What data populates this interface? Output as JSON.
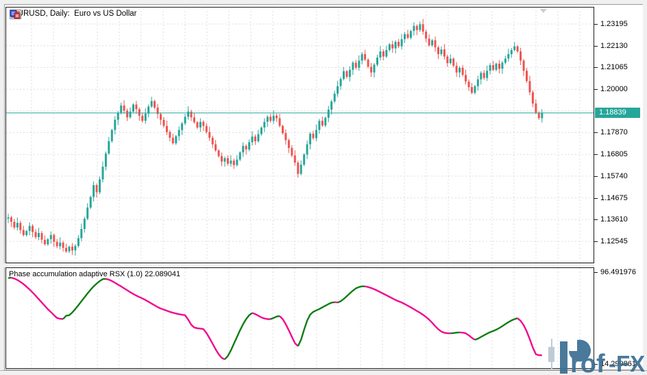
{
  "window": {
    "title": "EURUSD, Daily:  Euro vs US Dollar",
    "icons": [
      "market-list-icon",
      "chart-windows-icon"
    ]
  },
  "chart_data": {
    "type": "candlestick",
    "symbol": "EURUSD",
    "timeframe": "Daily",
    "title": "EURUSD, Daily:  Euro vs US Dollar",
    "price_axis_ticks": [
      "1.23195",
      "1.22130",
      "1.21065",
      "1.20000",
      "1.17870",
      "1.16805",
      "1.15740",
      "1.14675",
      "1.13610",
      "1.12545"
    ],
    "current_price": "1.18839",
    "colors": {
      "bull": "#26A69A",
      "bear": "#EF5350",
      "price_line": "#26A69A",
      "grid": "#dcdcdc"
    },
    "closes": [
      1.1372,
      1.135,
      1.1322,
      1.1345,
      1.131,
      1.1285,
      1.1305,
      1.133,
      1.13,
      1.1275,
      1.1295,
      1.1262,
      1.124,
      1.1265,
      1.1285,
      1.1252,
      1.123,
      1.1248,
      1.1222,
      1.1205,
      1.1228,
      1.121,
      1.1232,
      1.127,
      1.1315,
      1.1365,
      1.142,
      1.1472,
      1.153,
      1.1495,
      1.1558,
      1.162,
      1.1685,
      1.1745,
      1.18,
      1.185,
      1.1885,
      1.192,
      1.1895,
      1.1862,
      1.189,
      1.1925,
      1.1902,
      1.187,
      1.1845,
      1.188,
      1.1915,
      1.1942,
      1.191,
      1.1878,
      1.185,
      1.182,
      1.179,
      1.1762,
      1.1735,
      1.177,
      1.18,
      1.1832,
      1.1865,
      1.189,
      1.1862,
      1.1838,
      1.1812,
      1.184,
      1.182,
      1.179,
      1.1762,
      1.173,
      1.17,
      1.1672,
      1.1645,
      1.1662,
      1.1635,
      1.165,
      1.1628,
      1.1655,
      1.169,
      1.1722,
      1.1705,
      1.174,
      1.1768,
      1.1745,
      1.178,
      1.1812,
      1.184,
      1.1865,
      1.1845,
      1.187,
      1.1858,
      1.182,
      1.1785,
      1.175,
      1.1712,
      1.1675,
      1.164,
      1.1585,
      1.163,
      1.168,
      1.173,
      1.1782,
      1.176,
      1.18,
      1.1845,
      1.1822,
      1.186,
      1.19,
      1.194,
      1.1978,
      1.2015,
      1.205,
      1.2088,
      1.206,
      1.2095,
      1.213,
      1.2105,
      1.214,
      1.2172,
      1.2145,
      1.211,
      1.2082,
      1.212,
      1.2155,
      1.2185,
      1.216,
      1.2192,
      1.222,
      1.22,
      1.2232,
      1.221,
      1.2245,
      1.227,
      1.2252,
      1.2285,
      1.231,
      1.229,
      1.2318,
      1.2282,
      1.2248,
      1.2215,
      1.224,
      1.2205,
      1.2172,
      1.2195,
      1.216,
      1.2128,
      1.215,
      1.2115,
      1.2082,
      1.2105,
      1.207,
      1.2038,
      1.201,
      1.1982,
      1.2015,
      1.2048,
      1.208,
      1.2055,
      1.209,
      1.2118,
      1.2095,
      1.2125,
      1.21,
      1.213,
      1.215,
      1.2172,
      1.2192,
      1.221,
      1.2185,
      1.214,
      1.209,
      1.204,
      1.1985,
      1.193,
      1.1885,
      1.1858,
      1.18839
    ],
    "indicator": {
      "label": "Phase accumulation adaptive RSX (1.0) 22.089041",
      "name": "Phase accumulation adaptive RSX",
      "parameter": "1.0",
      "current_value": "22.089041",
      "axis_max": "96.491976",
      "axis_min": "14.299861",
      "up_color": "#0E7D12",
      "down_color": "#F0078F",
      "values": [
        91.2,
        91.6,
        90.8,
        89.5,
        87.8,
        85.8,
        83.5,
        81.0,
        78.3,
        75.4,
        72.4,
        69.3,
        66.3,
        63.4,
        60.8,
        58.0,
        55.5,
        54.8,
        54.6,
        57.5,
        58.0,
        60.5,
        63.5,
        67.0,
        70.5,
        74.0,
        77.5,
        80.8,
        83.8,
        86.3,
        88.5,
        90.3,
        90.5,
        89.8,
        88.6,
        87.0,
        85.3,
        83.8,
        82.0,
        80.3,
        78.6,
        77.0,
        75.5,
        74.2,
        73.0,
        71.5,
        70.0,
        68.4,
        66.8,
        65.2,
        64.0,
        63.0,
        62.0,
        61.0,
        60.2,
        59.5,
        58.9,
        58.4,
        58.0,
        54.0,
        49.5,
        47.0,
        46.3,
        46.0,
        45.5,
        42.0,
        37.5,
        32.5,
        27.5,
        23.0,
        19.8,
        18.5,
        21.5,
        26.5,
        32.5,
        38.5,
        44.5,
        50.0,
        54.5,
        58.0,
        60.0,
        59.0,
        57.5,
        56.0,
        55.0,
        54.5,
        54.5,
        55.5,
        56.8,
        57.2,
        54.5,
        50.0,
        44.5,
        38.5,
        33.0,
        30.3,
        36.0,
        45.0,
        53.0,
        58.5,
        61.0,
        62.3,
        63.5,
        65.0,
        66.5,
        68.0,
        69.2,
        69.6,
        69.4,
        70.5,
        72.5,
        75.0,
        77.5,
        80.0,
        82.0,
        83.2,
        83.8,
        83.8,
        83.2,
        82.3,
        81.2,
        80.0,
        78.6,
        77.2,
        75.8,
        74.4,
        73.0,
        71.6,
        70.4,
        69.3,
        68.0,
        66.5,
        65.0,
        63.4,
        61.8,
        60.2,
        58.4,
        56.4,
        54.0,
        51.2,
        48.2,
        45.4,
        43.4,
        42.3,
        41.9,
        41.8,
        42.0,
        42.4,
        42.6,
        42.4,
        41.8,
        40.0,
        37.8,
        36.0,
        37.0,
        38.5,
        40.0,
        41.5,
        42.8,
        43.8,
        45.0,
        46.5,
        48.2,
        50.0,
        51.8,
        53.3,
        54.5,
        55.3,
        53.0,
        49.0,
        43.5,
        36.5,
        29.0,
        23.0,
        22.2,
        22.089041
      ]
    }
  },
  "logo": {
    "name": "Prof-FX",
    "text_rof": "rof",
    "text_fx": "-FX",
    "color": "#3A6E93"
  }
}
